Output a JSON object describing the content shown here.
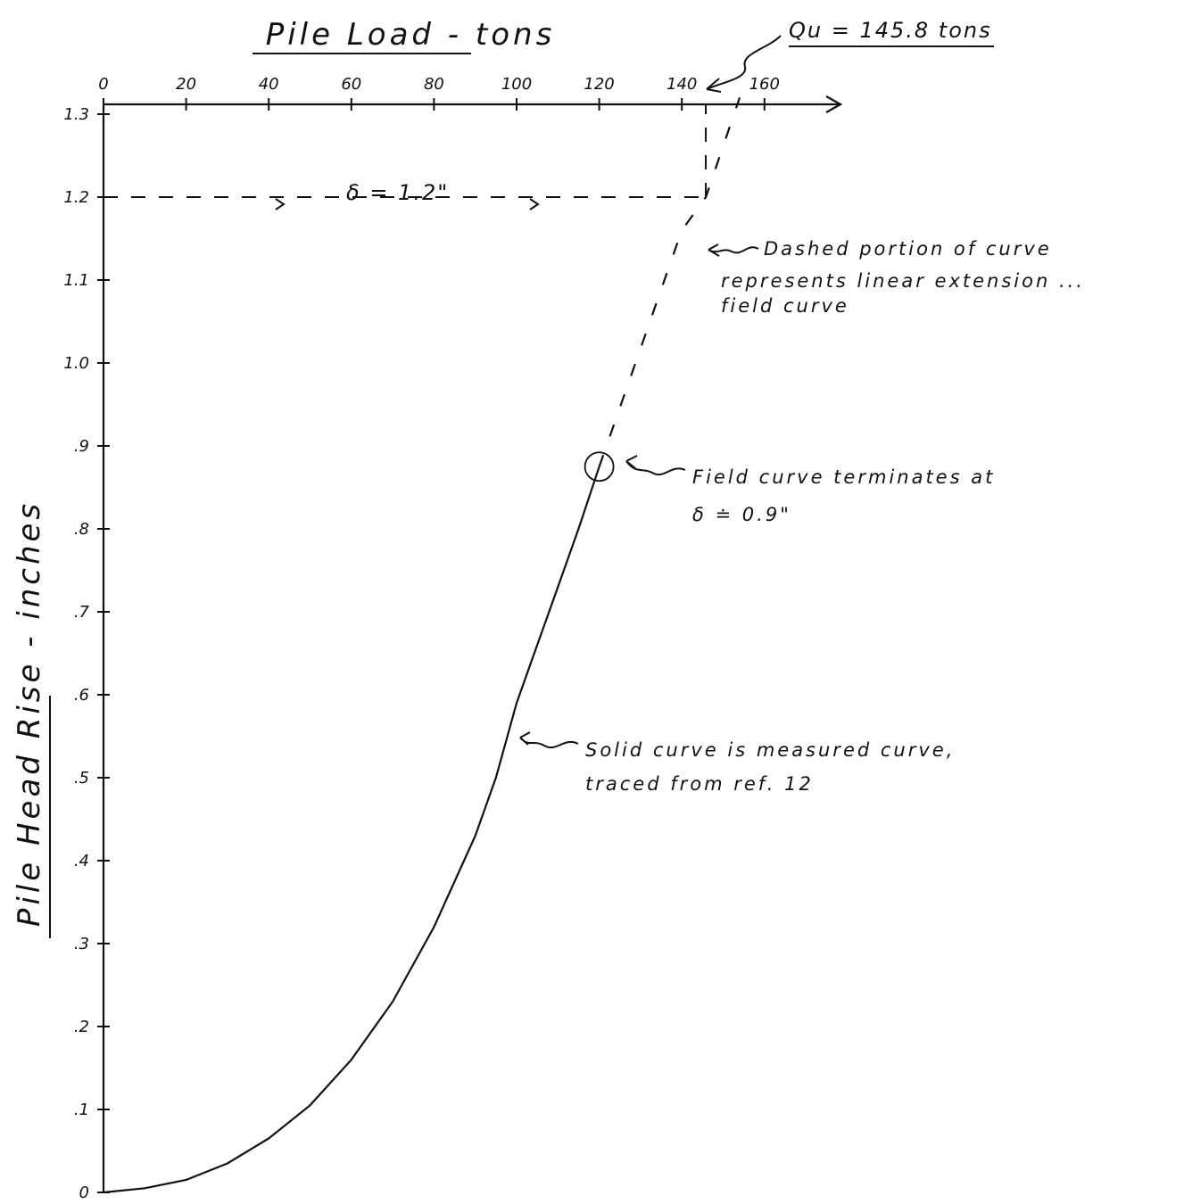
{
  "chart_data": {
    "type": "line",
    "title": "Pile Load - tons",
    "xlabel": "Pile Load - tons",
    "ylabel": "Pile Head Rise - inches",
    "x_ticks": [
      "0",
      "20",
      "40",
      "60",
      "80",
      "100",
      "120",
      "140",
      "160"
    ],
    "y_ticks": [
      "0",
      ".1",
      ".2",
      ".3",
      ".4",
      ".5",
      ".6",
      ".7",
      ".8",
      ".9",
      "1.0",
      "1.1",
      "1.2",
      "1.3"
    ],
    "xlim": [
      0,
      180
    ],
    "ylim": [
      0,
      1.35
    ],
    "grid": false,
    "legend": "none",
    "measured_curve": {
      "x": [
        0,
        10,
        20,
        30,
        40,
        50,
        60,
        70,
        80,
        90,
        95,
        100,
        105,
        110,
        115,
        120
      ],
      "y": [
        0,
        0.005,
        0.015,
        0.035,
        0.065,
        0.105,
        0.16,
        0.23,
        0.32,
        0.43,
        0.5,
        0.59,
        0.66,
        0.73,
        0.8,
        0.875
      ]
    },
    "extension_curve": {
      "x": [
        120,
        140,
        145.8,
        154
      ],
      "y": [
        0.875,
        1.16,
        1.2,
        1.32
      ]
    },
    "qu_value": 145.8,
    "delta_y": 1.2,
    "annotations": {
      "qu": "Qu = 145.8 tons",
      "delta": "δ = 1.2\"",
      "dashed": [
        "Dashed portion of curve",
        "represents linear extension ...",
        "field curve"
      ],
      "field_end": [
        "Field curve terminates at",
        "δ ≐ 0.9\""
      ],
      "solid": [
        "Solid curve is measured curve,",
        "traced from ref. 12"
      ]
    }
  }
}
